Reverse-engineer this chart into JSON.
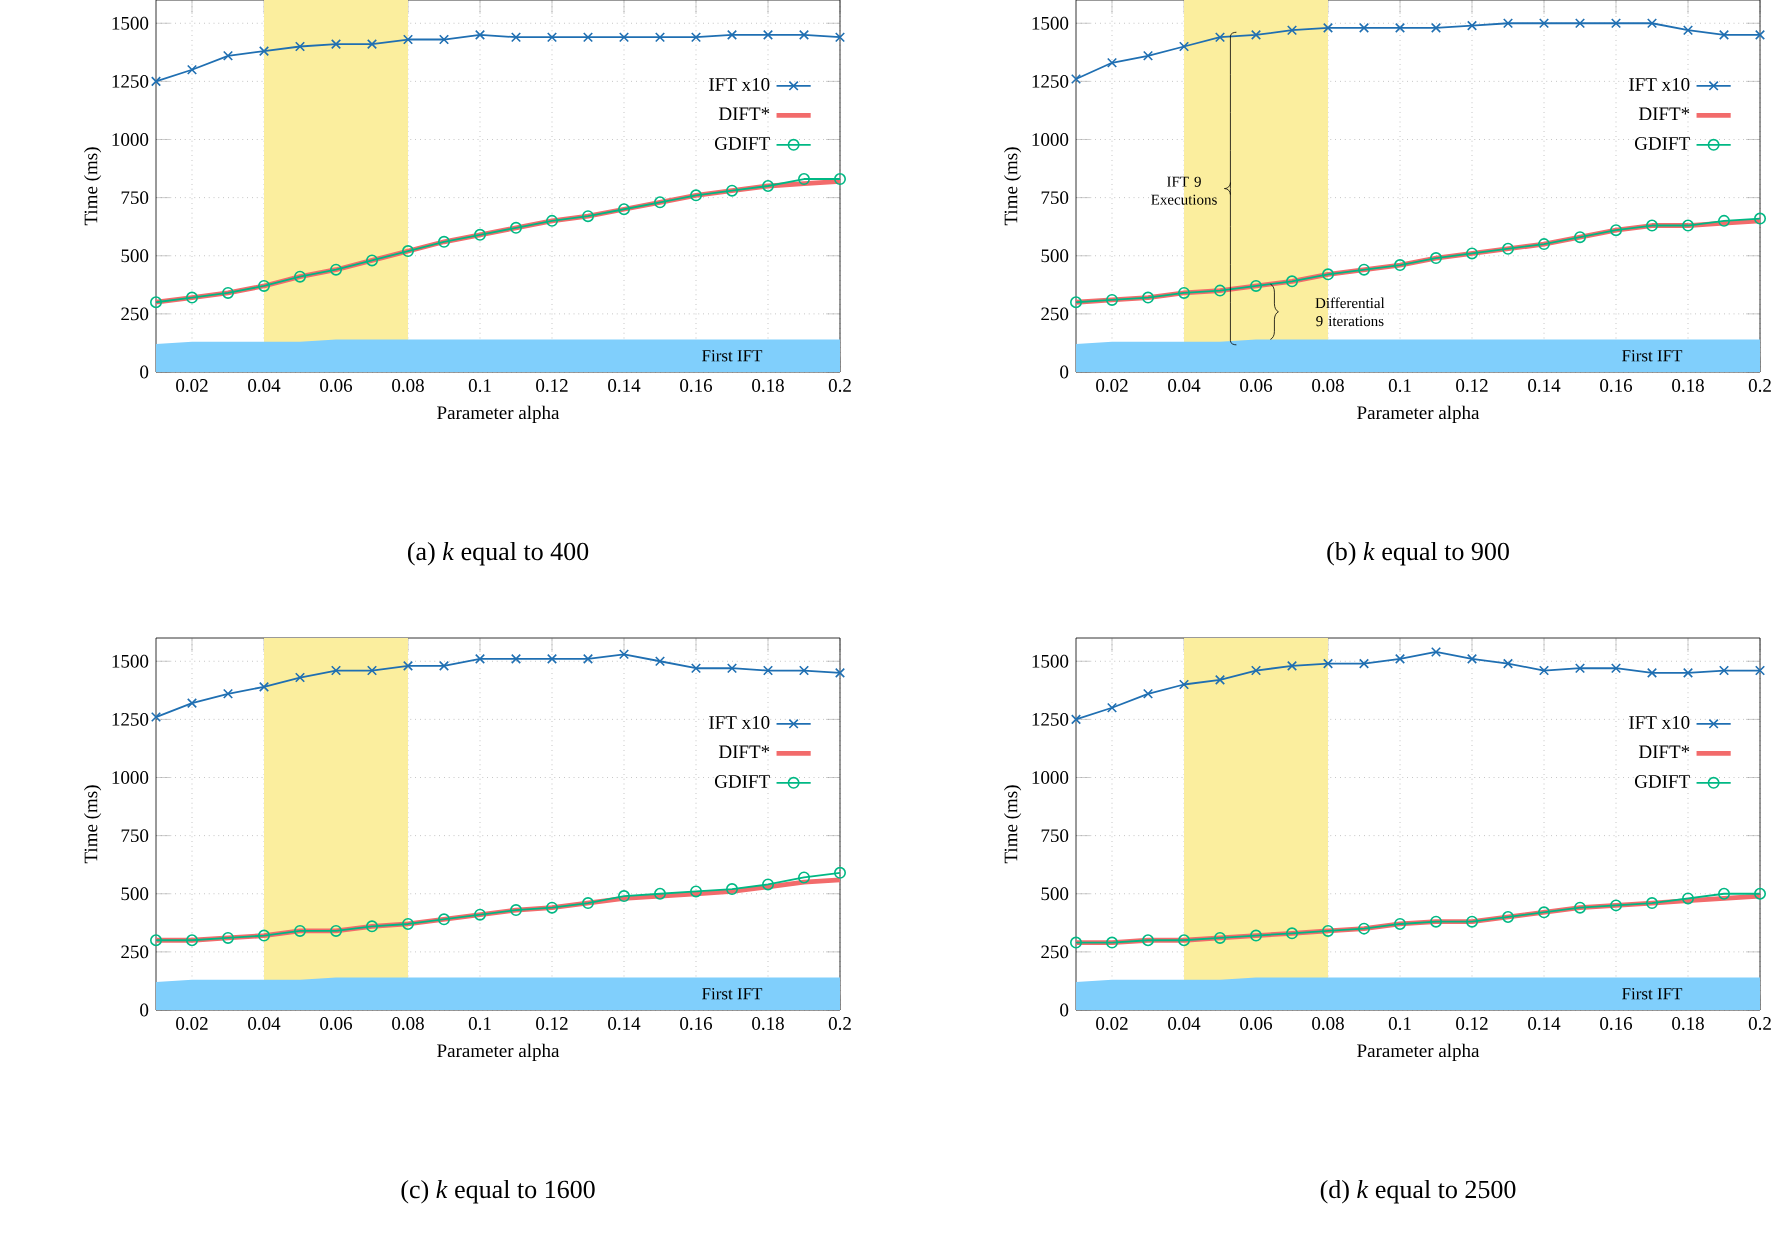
{
  "chart_data": [
    {
      "type": "line",
      "title": "(a) *k* equal to 400",
      "xlabel": "Parameter alpha",
      "ylabel": "Time (ms)",
      "x": [
        0.01,
        0.02,
        0.03,
        0.04,
        0.05,
        0.06,
        0.07,
        0.08,
        0.09,
        0.1,
        0.11,
        0.12,
        0.13,
        0.14,
        0.15,
        0.16,
        0.17,
        0.18,
        0.19,
        0.2
      ],
      "xlim": [
        0.01,
        0.2
      ],
      "xticks": [
        0.02,
        0.04,
        0.06,
        0.08,
        0.1,
        0.12,
        0.14,
        0.16,
        0.18,
        0.2
      ],
      "ylim": [
        0,
        1600
      ],
      "yticks": [
        0,
        250,
        500,
        750,
        1000,
        1250,
        1500
      ],
      "grid": true,
      "legend": "right",
      "bands": [
        {
          "axis": "x",
          "from": 0.04,
          "to": 0.08,
          "color": "#fbee9e"
        }
      ],
      "series": [
        {
          "type": "area",
          "name": "First IFT",
          "color": "#80cffc",
          "values": [
            120,
            130,
            130,
            130,
            130,
            140,
            140,
            140,
            140,
            140,
            140,
            140,
            140,
            140,
            140,
            140,
            140,
            140,
            140,
            140
          ]
        },
        {
          "name": "IFT x10",
          "color": "#1f6fb2",
          "marker": "cross",
          "values": [
            1250,
            1300,
            1360,
            1380,
            1400,
            1410,
            1410,
            1430,
            1430,
            1450,
            1440,
            1440,
            1440,
            1440,
            1440,
            1440,
            1450,
            1450,
            1450,
            1440
          ]
        },
        {
          "name": "DIFT*",
          "color": "#f26b6b",
          "marker": "none",
          "values": [
            300,
            320,
            340,
            370,
            410,
            440,
            480,
            520,
            560,
            590,
            620,
            650,
            670,
            700,
            730,
            760,
            780,
            800,
            810,
            820
          ]
        },
        {
          "name": "GDIFT",
          "color": "#00b884",
          "marker": "circle",
          "values": [
            300,
            320,
            340,
            370,
            410,
            440,
            480,
            520,
            560,
            590,
            620,
            650,
            670,
            700,
            730,
            760,
            780,
            800,
            830,
            830
          ]
        }
      ]
    },
    {
      "type": "line",
      "title": "(b) *k* equal to 900",
      "xlabel": "Parameter alpha",
      "ylabel": "Time (ms)",
      "x": [
        0.01,
        0.02,
        0.03,
        0.04,
        0.05,
        0.06,
        0.07,
        0.08,
        0.09,
        0.1,
        0.11,
        0.12,
        0.13,
        0.14,
        0.15,
        0.16,
        0.17,
        0.18,
        0.19,
        0.2
      ],
      "xlim": [
        0.01,
        0.2
      ],
      "xticks": [
        0.02,
        0.04,
        0.06,
        0.08,
        0.1,
        0.12,
        0.14,
        0.16,
        0.18,
        0.2
      ],
      "ylim": [
        0,
        1600
      ],
      "yticks": [
        0,
        250,
        500,
        750,
        1000,
        1250,
        1500
      ],
      "grid": true,
      "legend": "right",
      "bands": [
        {
          "axis": "x",
          "from": 0.04,
          "to": 0.08,
          "color": "#fbee9e"
        }
      ],
      "annotations": [
        {
          "text": "IFT 9 Executions",
          "x": 0.04,
          "y": 780
        },
        "Differential 9 iterations"
      ],
      "series": [
        {
          "type": "area",
          "name": "First IFT",
          "color": "#80cffc",
          "values": [
            120,
            130,
            130,
            130,
            130,
            140,
            140,
            140,
            140,
            140,
            140,
            140,
            140,
            140,
            140,
            140,
            140,
            140,
            140,
            140
          ]
        },
        {
          "name": "IFT x10",
          "color": "#1f6fb2",
          "marker": "cross",
          "values": [
            1260,
            1330,
            1360,
            1400,
            1440,
            1450,
            1470,
            1480,
            1480,
            1480,
            1480,
            1490,
            1500,
            1500,
            1500,
            1500,
            1500,
            1470,
            1450,
            1450
          ]
        },
        {
          "name": "DIFT*",
          "color": "#f26b6b",
          "marker": "none",
          "values": [
            300,
            310,
            320,
            340,
            350,
            370,
            390,
            420,
            440,
            460,
            490,
            510,
            530,
            550,
            580,
            610,
            630,
            630,
            640,
            650
          ]
        },
        {
          "name": "GDIFT",
          "color": "#00b884",
          "marker": "circle",
          "values": [
            300,
            310,
            320,
            340,
            350,
            370,
            390,
            420,
            440,
            460,
            490,
            510,
            530,
            550,
            580,
            610,
            630,
            630,
            650,
            660
          ]
        }
      ]
    },
    {
      "type": "line",
      "title": "(c) *k* equal to 1600",
      "xlabel": "Parameter alpha",
      "ylabel": "Time (ms)",
      "x": [
        0.01,
        0.02,
        0.03,
        0.04,
        0.05,
        0.06,
        0.07,
        0.08,
        0.09,
        0.1,
        0.11,
        0.12,
        0.13,
        0.14,
        0.15,
        0.16,
        0.17,
        0.18,
        0.19,
        0.2
      ],
      "xlim": [
        0.01,
        0.2
      ],
      "xticks": [
        0.02,
        0.04,
        0.06,
        0.08,
        0.1,
        0.12,
        0.14,
        0.16,
        0.18,
        0.2
      ],
      "ylim": [
        0,
        1600
      ],
      "yticks": [
        0,
        250,
        500,
        750,
        1000,
        1250,
        1500
      ],
      "grid": true,
      "legend": "right",
      "bands": [
        {
          "axis": "x",
          "from": 0.04,
          "to": 0.08,
          "color": "#fbee9e"
        }
      ],
      "series": [
        {
          "type": "area",
          "name": "First IFT",
          "color": "#80cffc",
          "values": [
            120,
            130,
            130,
            130,
            130,
            140,
            140,
            140,
            140,
            140,
            140,
            140,
            140,
            140,
            140,
            140,
            140,
            140,
            140,
            140
          ]
        },
        {
          "name": "IFT x10",
          "color": "#1f6fb2",
          "marker": "cross",
          "values": [
            1260,
            1320,
            1360,
            1390,
            1430,
            1460,
            1460,
            1480,
            1480,
            1510,
            1510,
            1510,
            1510,
            1530,
            1500,
            1470,
            1470,
            1460,
            1460,
            1450
          ]
        },
        {
          "name": "DIFT*",
          "color": "#f26b6b",
          "marker": "none",
          "values": [
            300,
            300,
            310,
            320,
            340,
            340,
            360,
            370,
            390,
            410,
            430,
            440,
            460,
            480,
            490,
            500,
            510,
            530,
            550,
            560
          ]
        },
        {
          "name": "GDIFT",
          "color": "#00b884",
          "marker": "circle",
          "values": [
            300,
            300,
            310,
            320,
            340,
            340,
            360,
            370,
            390,
            410,
            430,
            440,
            460,
            490,
            500,
            510,
            520,
            540,
            570,
            590
          ]
        }
      ]
    },
    {
      "type": "line",
      "title": "(d) *k* equal to 2500",
      "xlabel": "Parameter alpha",
      "ylabel": "Time (ms)",
      "x": [
        0.01,
        0.02,
        0.03,
        0.04,
        0.05,
        0.06,
        0.07,
        0.08,
        0.09,
        0.1,
        0.11,
        0.12,
        0.13,
        0.14,
        0.15,
        0.16,
        0.17,
        0.18,
        0.19,
        0.2
      ],
      "xlim": [
        0.01,
        0.2
      ],
      "xticks": [
        0.02,
        0.04,
        0.06,
        0.08,
        0.1,
        0.12,
        0.14,
        0.16,
        0.18,
        0.2
      ],
      "ylim": [
        0,
        1600
      ],
      "yticks": [
        0,
        250,
        500,
        750,
        1000,
        1250,
        1500
      ],
      "grid": true,
      "legend": "right",
      "bands": [
        {
          "axis": "x",
          "from": 0.04,
          "to": 0.08,
          "color": "#fbee9e"
        }
      ],
      "series": [
        {
          "type": "area",
          "name": "First IFT",
          "color": "#80cffc",
          "values": [
            120,
            130,
            130,
            130,
            130,
            140,
            140,
            140,
            140,
            140,
            140,
            140,
            140,
            140,
            140,
            140,
            140,
            140,
            140,
            140
          ]
        },
        {
          "name": "IFT x10",
          "color": "#1f6fb2",
          "marker": "cross",
          "values": [
            1250,
            1300,
            1360,
            1400,
            1420,
            1460,
            1480,
            1490,
            1490,
            1510,
            1540,
            1510,
            1490,
            1460,
            1470,
            1470,
            1450,
            1450,
            1460,
            1460
          ]
        },
        {
          "name": "DIFT*",
          "color": "#f26b6b",
          "marker": "none",
          "values": [
            290,
            290,
            300,
            300,
            310,
            320,
            330,
            340,
            350,
            370,
            380,
            380,
            400,
            420,
            440,
            450,
            460,
            470,
            480,
            490
          ]
        },
        {
          "name": "GDIFT",
          "color": "#00b884",
          "marker": "circle",
          "values": [
            290,
            290,
            300,
            300,
            310,
            320,
            330,
            340,
            350,
            370,
            380,
            380,
            400,
            420,
            440,
            450,
            460,
            480,
            500,
            500
          ]
        }
      ]
    }
  ]
}
